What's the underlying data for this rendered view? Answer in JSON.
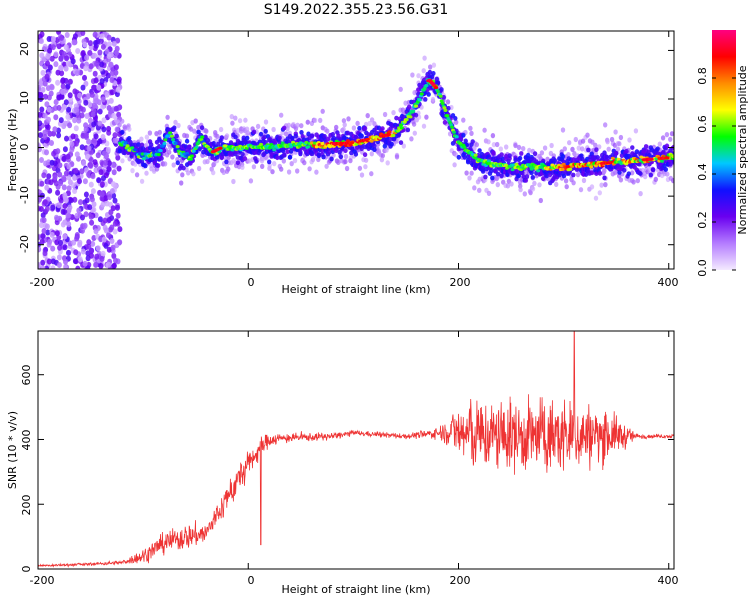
{
  "figure_title": "S149.2022.355.23.56.G31",
  "chart_data": [
    {
      "type": "heatmap",
      "title": "",
      "xlabel": "Height of straight line (km)",
      "ylabel": "Frequency (Hz)",
      "xlim": [
        -200,
        405
      ],
      "ylim": [
        -25,
        24
      ],
      "x_ticks": [
        "-200",
        "0",
        "200",
        "400"
      ],
      "y_ticks": [
        "-20",
        "-10",
        "0",
        "10",
        "20"
      ],
      "colorbar": {
        "label": "Normalized spectral amplitude",
        "range": [
          0.0,
          1.0
        ],
        "ticks": [
          "0.0",
          "0.2",
          "0.4",
          "0.6",
          "0.8"
        ],
        "colormap": [
          "#f4eaff",
          "#b47cff",
          "#6a00f0",
          "#1010ff",
          "#00c8ff",
          "#00ff00",
          "#ffff00",
          "#ff8c00",
          "#ff0000",
          "#ff0080"
        ]
      },
      "ridge": {
        "description_points_x": [
          -120,
          -100,
          -85,
          -75,
          -65,
          -55,
          -45,
          -35,
          -25,
          -10,
          0,
          50,
          100,
          140,
          155,
          165,
          172,
          180,
          190,
          200,
          220,
          250,
          300,
          350,
          405
        ],
        "description_points_y": [
          1,
          -2,
          -1,
          3,
          -1,
          -2,
          2,
          -1,
          0,
          0,
          0,
          0.5,
          1,
          3,
          7,
          11,
          14,
          12,
          6,
          1,
          -3,
          -4,
          -4,
          -3,
          -2
        ]
      },
      "noise_region_x": [
        -200,
        -122
      ]
    },
    {
      "type": "line",
      "title": "",
      "xlabel": "Height of straight line (km)",
      "ylabel": "SNR (10 * v/v)",
      "xlim": [
        -200,
        405
      ],
      "ylim": [
        0,
        735
      ],
      "x_ticks": [
        "-200",
        "0",
        "200",
        "400"
      ],
      "y_ticks": [
        "0",
        "200",
        "400",
        "600"
      ],
      "line_color": "#ee3333",
      "envelope_x": [
        -200,
        -150,
        -120,
        -100,
        -80,
        -60,
        -40,
        -20,
        -5,
        0,
        10,
        20,
        40,
        80,
        100,
        150,
        180,
        195,
        200,
        220,
        260,
        300,
        340,
        360,
        370,
        390,
        405
      ],
      "envelope_mean": [
        10,
        15,
        20,
        40,
        80,
        100,
        110,
        220,
        300,
        320,
        370,
        400,
        405,
        410,
        420,
        410,
        420,
        430,
        420,
        410,
        410,
        410,
        415,
        410,
        410,
        410,
        410
      ],
      "envelope_spread": [
        6,
        8,
        10,
        40,
        60,
        70,
        60,
        80,
        90,
        70,
        60,
        40,
        25,
        20,
        15,
        15,
        30,
        100,
        180,
        200,
        200,
        210,
        150,
        60,
        15,
        10,
        10
      ],
      "peak_max": 735
    }
  ]
}
